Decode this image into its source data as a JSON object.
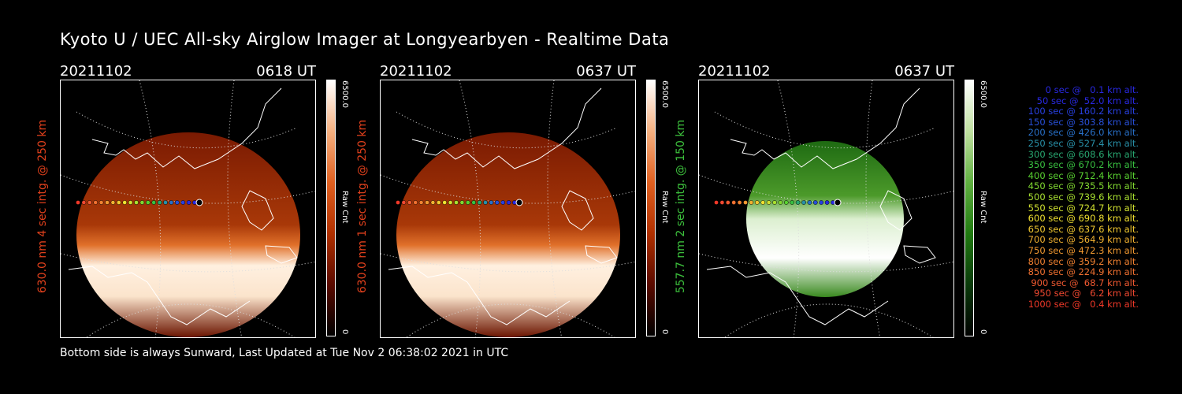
{
  "title": "Kyoto U / UEC All-sky Airglow Imager at Longyearbyen - Realtime Data",
  "footer": "Bottom side is always Sunward, Last Updated at Tue Nov  2 06:38:02 2021 in UTC",
  "panels": [
    {
      "date": "20211102",
      "time": "0618 UT",
      "ylabel": "630.0 nm  4 sec intg. @ 250 km",
      "cbar_max": "6500.0",
      "cbar_min": "0",
      "cbar_unit": "Raw Cnt",
      "ylabel_color": "#e0401c",
      "theme": "red"
    },
    {
      "date": "20211102",
      "time": "0637 UT",
      "ylabel": "630.0 nm  1 sec intg. @ 250 km",
      "cbar_max": "6500.0",
      "cbar_min": "0",
      "cbar_unit": "Raw Cnt",
      "ylabel_color": "#e0401c",
      "theme": "red"
    },
    {
      "date": "20211102",
      "time": "0637 UT",
      "ylabel": "557.7 nm  2 sec intg. @ 150 km",
      "cbar_max": "6500.0",
      "cbar_min": "0",
      "cbar_unit": "Raw Cnt",
      "ylabel_color": "#3cc03c",
      "theme": "green"
    }
  ],
  "legend": [
    {
      "t": "   0 sec @",
      "a": "   0.1 km alt.",
      "c": "#2828e0"
    },
    {
      "t": "  50 sec @",
      "a": "  52.0 km alt.",
      "c": "#2828e0"
    },
    {
      "t": " 100 sec @",
      "a": " 160.2 km alt.",
      "c": "#2840e0"
    },
    {
      "t": " 150 sec @",
      "a": " 303.8 km alt.",
      "c": "#2850d8"
    },
    {
      "t": " 200 sec @",
      "a": " 426.0 km alt.",
      "c": "#2870c8"
    },
    {
      "t": " 250 sec @",
      "a": " 527.4 km alt.",
      "c": "#2890a8"
    },
    {
      "t": " 300 sec @",
      "a": " 608.6 km alt.",
      "c": "#28a870"
    },
    {
      "t": " 350 sec @",
      "a": " 670.2 km alt.",
      "c": "#38c040"
    },
    {
      "t": " 400 sec @",
      "a": " 712.4 km alt.",
      "c": "#58d030"
    },
    {
      "t": " 450 sec @",
      "a": " 735.5 km alt.",
      "c": "#80d830"
    },
    {
      "t": " 500 sec @",
      "a": " 739.6 km alt.",
      "c": "#a8e030"
    },
    {
      "t": " 550 sec @",
      "a": " 724.7 km alt.",
      "c": "#d0e030"
    },
    {
      "t": " 600 sec @",
      "a": " 690.8 km alt.",
      "c": "#f0e030"
    },
    {
      "t": " 650 sec @",
      "a": " 637.6 km alt.",
      "c": "#f0c830"
    },
    {
      "t": " 700 sec @",
      "a": " 564.9 km alt.",
      "c": "#f0b030"
    },
    {
      "t": " 750 sec @",
      "a": " 472.3 km alt.",
      "c": "#f09830"
    },
    {
      "t": " 800 sec @",
      "a": " 359.2 km alt.",
      "c": "#f08030"
    },
    {
      "t": " 850 sec @",
      "a": " 224.9 km alt.",
      "c": "#f07030"
    },
    {
      "t": " 900 sec @",
      "a": "  68.7 km alt.",
      "c": "#f05830"
    },
    {
      "t": " 950 sec @",
      "a": "   6.2 km alt.",
      "c": "#f04830"
    },
    {
      "t": "1000 sec @",
      "a": "   0.4 km alt.",
      "c": "#f03828"
    }
  ]
}
